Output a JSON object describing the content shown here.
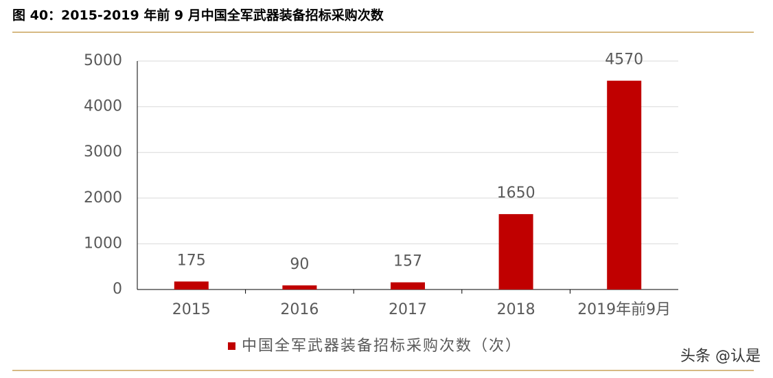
{
  "chart_data": {
    "type": "bar",
    "title": "图 40：2015-2019 年前 9 月中国全军武器装备招标采购次数",
    "categories": [
      "2015",
      "2016",
      "2017",
      "2018",
      "2019年前9月"
    ],
    "series": [
      {
        "name": "中国全军武器装备招标采购次数（次）",
        "color": "#c00000",
        "values": [
          175,
          90,
          157,
          1650,
          4570
        ]
      }
    ],
    "ylim": [
      0,
      5000
    ],
    "yticks": [
      0,
      1000,
      2000,
      3000,
      4000,
      5000
    ],
    "grid": true,
    "legend": "bottom",
    "watermark": "头条 @认是"
  }
}
